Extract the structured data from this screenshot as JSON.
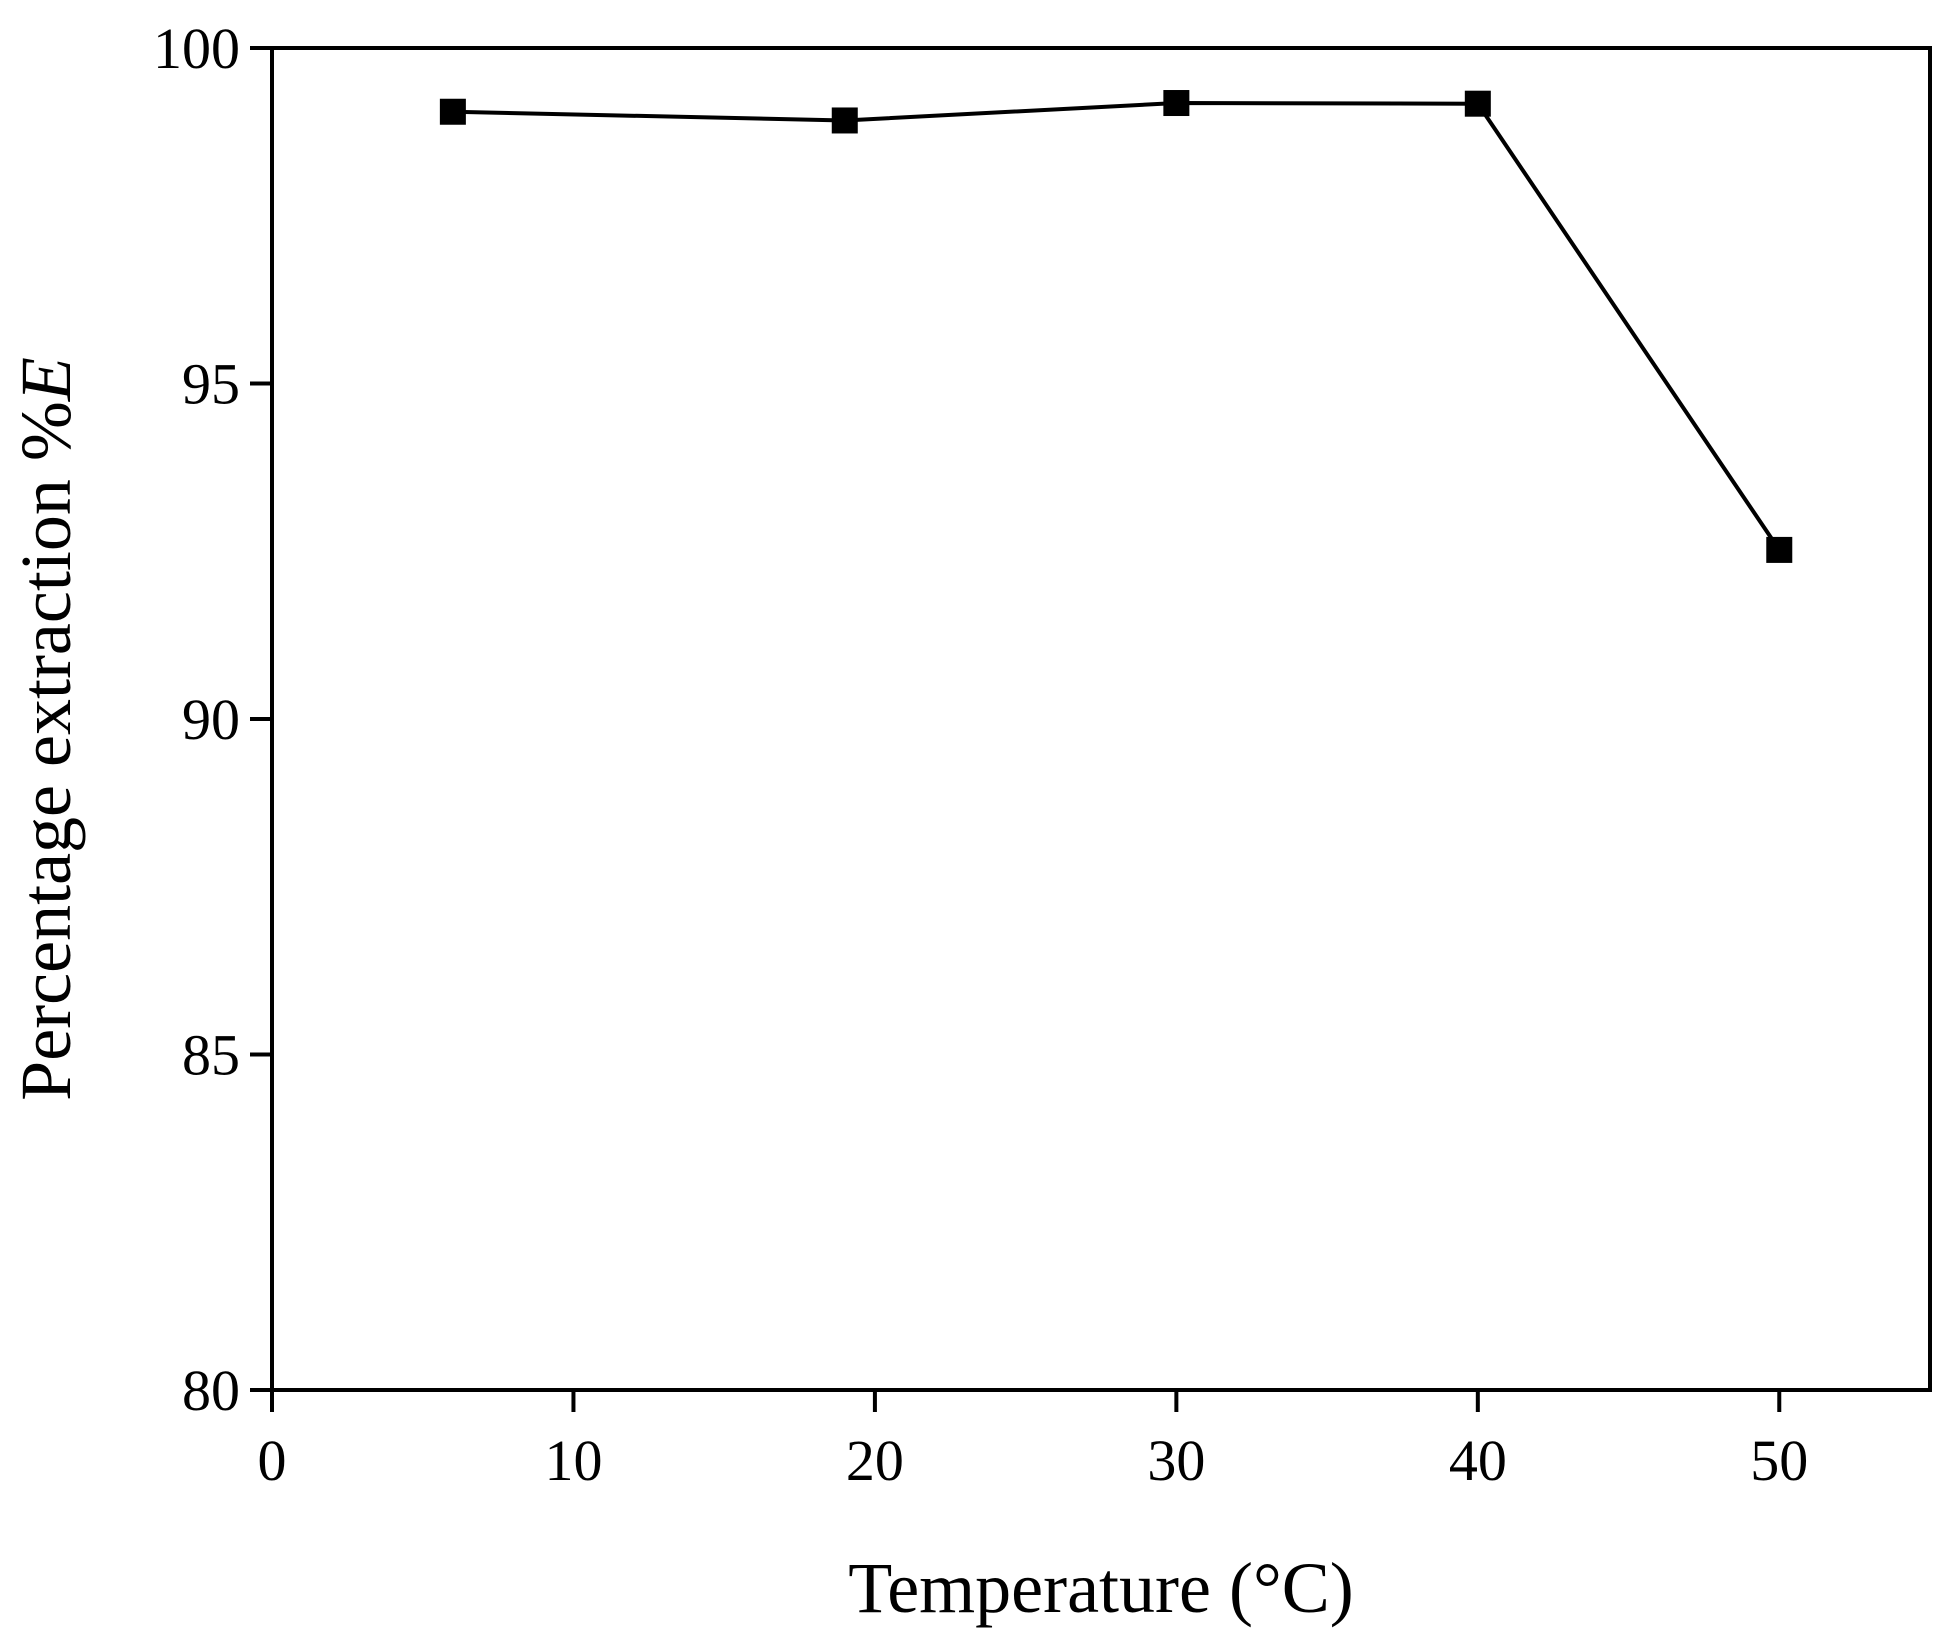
{
  "chart_data": {
    "type": "line",
    "title": "",
    "xlabel": "Temperature (°C)",
    "ylabel_prefix": "Percentage extraction %",
    "ylabel_italic": "E",
    "xlim": [
      0,
      55
    ],
    "ylim": [
      80,
      100
    ],
    "xticks": [
      0,
      10,
      20,
      30,
      40,
      50
    ],
    "yticks": [
      80,
      85,
      90,
      95,
      100
    ],
    "xtick_labels": [
      "0",
      "10",
      "20",
      "30",
      "40",
      "50"
    ],
    "ytick_labels": [
      "80",
      "85",
      "90",
      "95",
      "100"
    ],
    "grid": false,
    "legend": false,
    "series": [
      {
        "marker": "square",
        "color": "#000000",
        "x": [
          6,
          19,
          30,
          40,
          50
        ],
        "y": [
          99.05,
          98.92,
          99.18,
          99.17,
          92.52
        ]
      }
    ]
  }
}
